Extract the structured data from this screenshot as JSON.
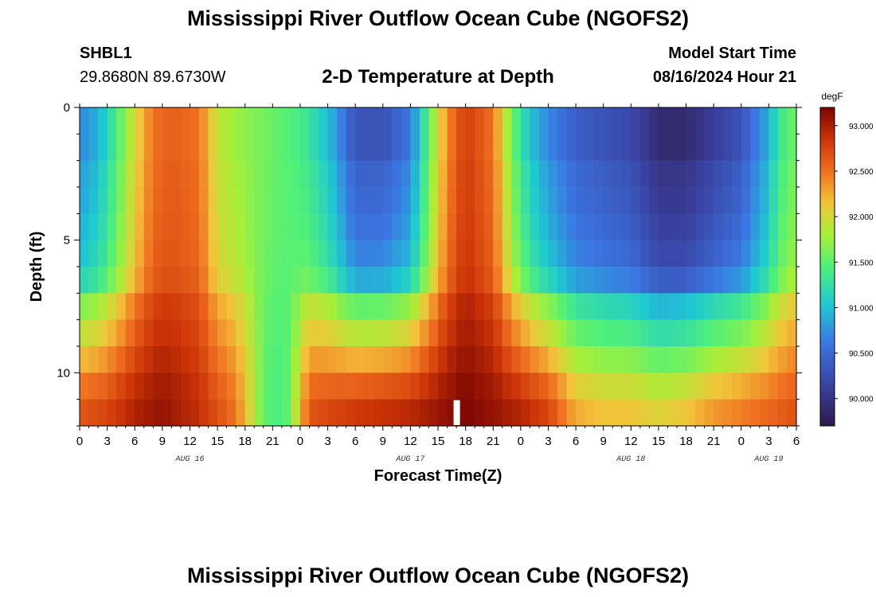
{
  "header": {
    "title": "Mississippi River Outflow Ocean Cube (NGOFS2)",
    "station_id": "SHBL1",
    "station_coords": "29.8680N  89.6730W",
    "subtitle": "2-D Temperature at Depth",
    "model_label": "Model Start Time",
    "model_time": "08/16/2024 Hour 21"
  },
  "footer": {
    "title": "Mississippi River Outflow Ocean Cube (NGOFS2)"
  },
  "chart_data": {
    "type": "heatmap",
    "title": "2-D Temperature at Depth",
    "xlabel": "Forecast Time(Z)",
    "ylabel": "Depth (ft)",
    "x_hour_range": [
      0,
      78
    ],
    "x_hour_step": 1,
    "x_tick_labels": [
      "0",
      "3",
      "6",
      "9",
      "12",
      "15",
      "18",
      "21",
      "0",
      "3",
      "6",
      "9",
      "12",
      "15",
      "18",
      "21",
      "0",
      "3",
      "6",
      "9",
      "12",
      "15",
      "18",
      "21",
      "0",
      "3",
      "6"
    ],
    "x_tick_step_hours": 3,
    "date_labels": [
      {
        "text": "AUG 16",
        "hour": 12
      },
      {
        "text": "AUG 17",
        "hour": 36
      },
      {
        "text": "AUG 18",
        "hour": 60
      },
      {
        "text": "AUG 19",
        "hour": 75
      }
    ],
    "y_range": [
      0,
      12
    ],
    "y_tick_labels": [
      "0",
      "5",
      "10"
    ],
    "y_tick_values": [
      0,
      5,
      10
    ],
    "depth_levels": 12,
    "colorbar": {
      "unit": "degF",
      "range": [
        89.7,
        93.2
      ],
      "tick_labels": [
        "93.000",
        "92.500",
        "92.000",
        "91.500",
        "91.000",
        "90.500",
        "90.000"
      ],
      "tick_values": [
        93.0,
        92.5,
        92.0,
        91.5,
        91.0,
        90.5,
        90.0
      ]
    },
    "colormap": [
      {
        "v": 0.0,
        "c": "#2e1a47"
      },
      {
        "v": 0.12,
        "c": "#3a3f9e"
      },
      {
        "v": 0.26,
        "c": "#3b77e3"
      },
      {
        "v": 0.38,
        "c": "#1ec9d2"
      },
      {
        "v": 0.5,
        "c": "#4ff07a"
      },
      {
        "v": 0.6,
        "c": "#a8ef38"
      },
      {
        "v": 0.7,
        "c": "#f2c43a"
      },
      {
        "v": 0.8,
        "c": "#f07021"
      },
      {
        "v": 0.9,
        "c": "#cc3407"
      },
      {
        "v": 1.0,
        "c": "#7a0403"
      }
    ],
    "surface_temp_knots": [
      [
        0,
        90.7
      ],
      [
        2,
        90.9
      ],
      [
        4,
        91.4
      ],
      [
        6,
        92.0
      ],
      [
        8,
        92.5
      ],
      [
        10,
        92.6
      ],
      [
        13,
        92.5
      ],
      [
        15,
        91.9
      ],
      [
        18,
        91.7
      ],
      [
        22,
        91.5
      ],
      [
        24,
        91.4
      ],
      [
        27,
        91.0
      ],
      [
        30,
        90.3
      ],
      [
        33,
        90.3
      ],
      [
        36,
        90.6
      ],
      [
        38,
        91.5
      ],
      [
        40,
        92.4
      ],
      [
        42,
        92.8
      ],
      [
        45,
        92.5
      ],
      [
        47,
        91.6
      ],
      [
        49,
        91.0
      ],
      [
        51,
        90.7
      ],
      [
        54,
        90.4
      ],
      [
        60,
        90.2
      ],
      [
        63,
        89.9
      ],
      [
        66,
        89.9
      ],
      [
        69,
        90.1
      ],
      [
        72,
        90.3
      ],
      [
        75,
        90.9
      ],
      [
        76,
        91.3
      ],
      [
        78,
        91.6
      ]
    ],
    "bottom_temp_knots": [
      [
        0,
        92.7
      ],
      [
        3,
        92.8
      ],
      [
        6,
        93.0
      ],
      [
        9,
        93.1
      ],
      [
        13,
        92.9
      ],
      [
        17,
        92.5
      ],
      [
        19,
        91.9
      ],
      [
        20,
        91.5
      ],
      [
        22,
        91.4
      ],
      [
        23,
        91.6
      ],
      [
        24,
        92.2
      ],
      [
        25,
        92.7
      ],
      [
        30,
        92.9
      ],
      [
        36,
        93.0
      ],
      [
        42,
        93.2
      ],
      [
        48,
        93.0
      ],
      [
        51,
        92.8
      ],
      [
        54,
        92.3
      ],
      [
        57,
        92.2
      ],
      [
        60,
        92.2
      ],
      [
        63,
        92.1
      ],
      [
        66,
        92.2
      ],
      [
        69,
        92.4
      ],
      [
        72,
        92.5
      ],
      [
        75,
        92.6
      ],
      [
        78,
        92.7
      ]
    ],
    "layer_blend": [
      0.0,
      0.0,
      0.05,
      0.07,
      0.1,
      0.14,
      0.22,
      0.47,
      0.6,
      0.74,
      0.88,
      0.97
    ],
    "annotations": [
      {
        "type": "marker",
        "hour": 41,
        "depth_level": 11,
        "color": "#ffffff"
      }
    ]
  }
}
